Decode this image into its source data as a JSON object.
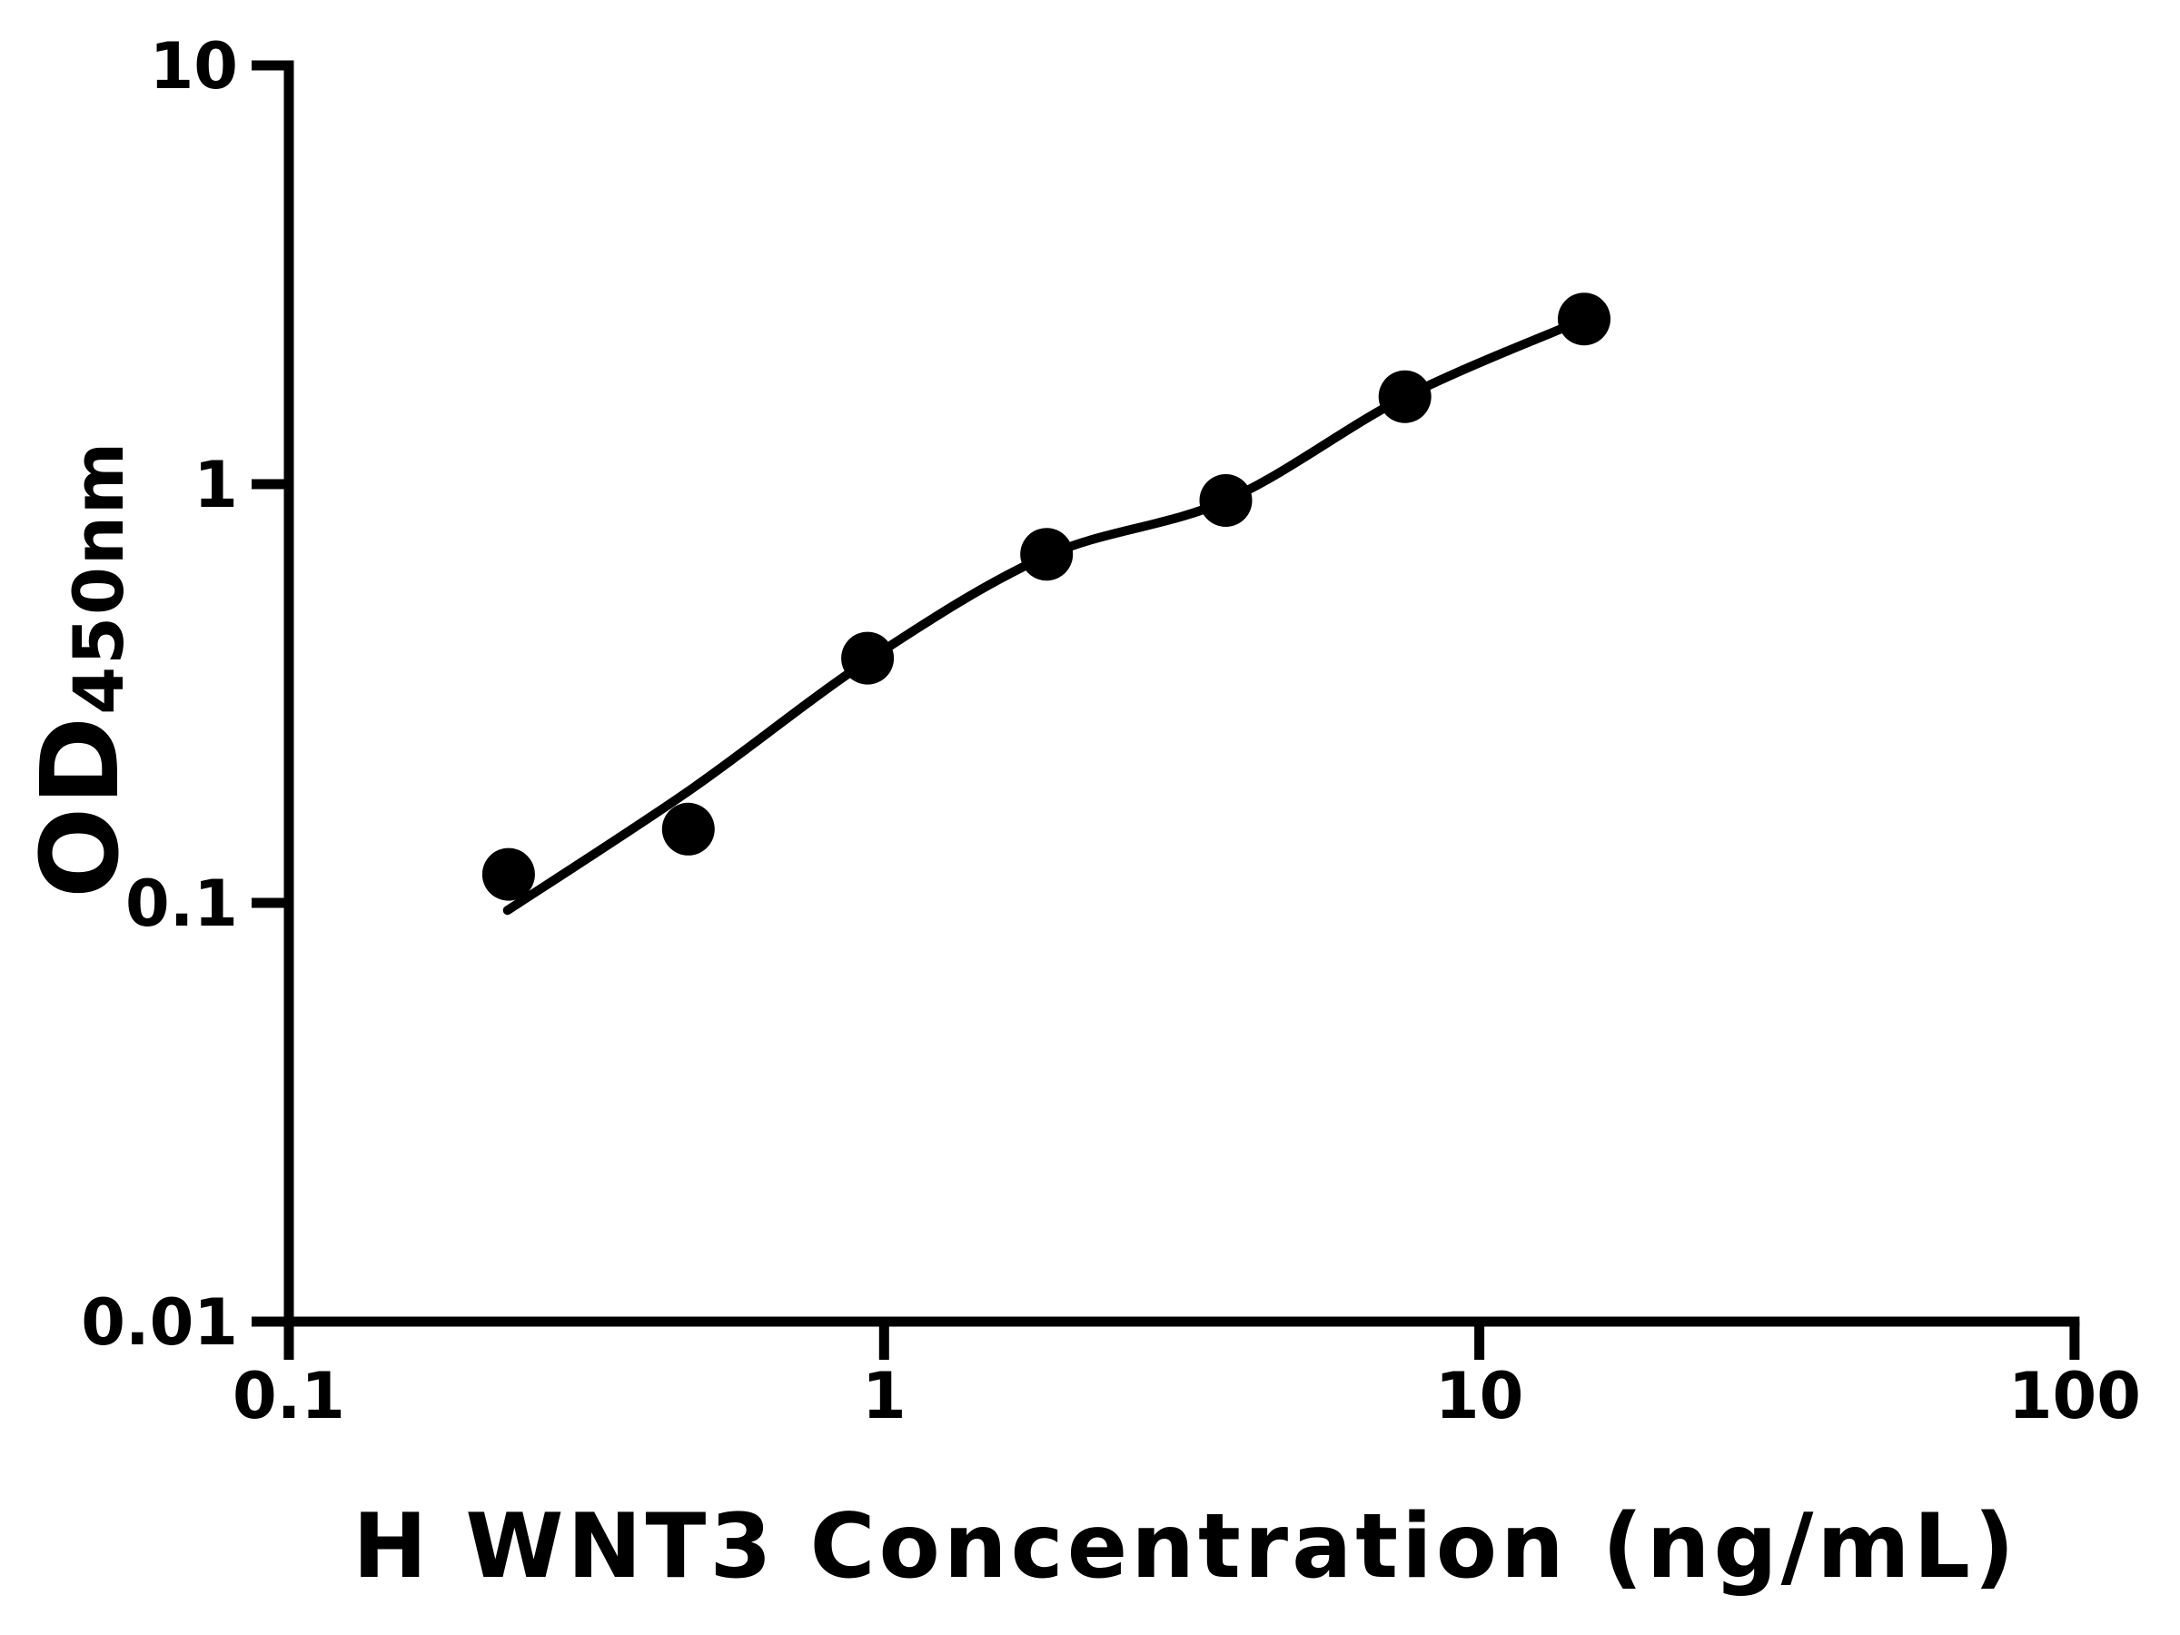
{
  "figure": {
    "background_color": "#ffffff",
    "ink_color": "#000000"
  },
  "chart_data": {
    "type": "scatter",
    "title": "",
    "xlabel": "H WNT3 Concentration (ng/mL)",
    "ylabel_main": "OD",
    "ylabel_subscript": "450nm",
    "x_scale": "log10",
    "y_scale": "log10",
    "xlim": [
      0.1,
      100
    ],
    "ylim": [
      0.01,
      10
    ],
    "grid": false,
    "legend": null,
    "x_ticks": [
      {
        "value": 0.1,
        "label": "0.1"
      },
      {
        "value": 1,
        "label": "1"
      },
      {
        "value": 10,
        "label": "10"
      },
      {
        "value": 100,
        "label": "100"
      }
    ],
    "y_ticks": [
      {
        "value": 10,
        "label": "10"
      },
      {
        "value": 1,
        "label": "1"
      },
      {
        "value": 0.1,
        "label": "0.1"
      },
      {
        "value": 0.01,
        "label": "0.01"
      }
    ],
    "series": [
      {
        "name": "standard-data-points",
        "type": "scatter",
        "marker": "filled-circle",
        "color": "#000000",
        "points": [
          {
            "x": 0.234,
            "y": 0.117
          },
          {
            "x": 0.469,
            "y": 0.15
          },
          {
            "x": 0.938,
            "y": 0.384
          },
          {
            "x": 1.875,
            "y": 0.68
          },
          {
            "x": 3.75,
            "y": 0.914
          },
          {
            "x": 7.5,
            "y": 1.618
          },
          {
            "x": 15,
            "y": 2.48
          }
        ]
      },
      {
        "name": "fitted-curve",
        "type": "line",
        "color": "#000000",
        "points": [
          {
            "x": 0.233,
            "y": 0.096
          },
          {
            "x": 0.472,
            "y": 0.186
          },
          {
            "x": 0.944,
            "y": 0.381
          },
          {
            "x": 1.874,
            "y": 0.674
          },
          {
            "x": 3.76,
            "y": 0.914
          },
          {
            "x": 7.51,
            "y": 1.616
          },
          {
            "x": 15.05,
            "y": 2.48
          }
        ]
      }
    ]
  }
}
